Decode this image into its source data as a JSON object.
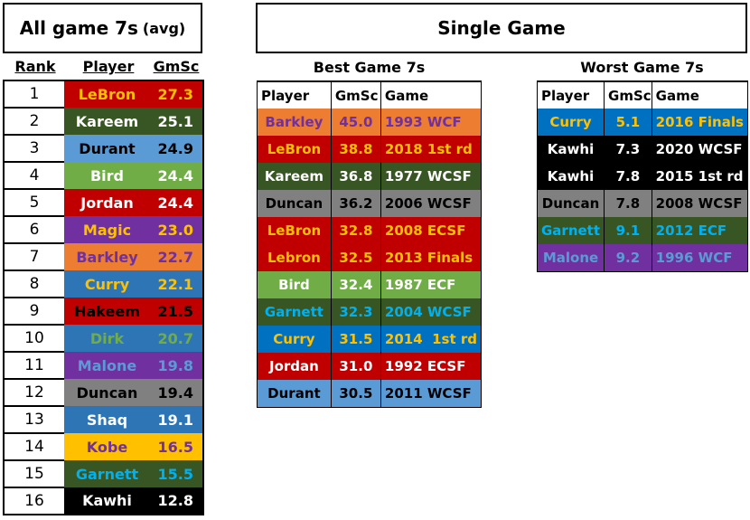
{
  "colors": {
    "red": "#C00000",
    "dark_green": "#375623",
    "light_blue": "#5B9BD5",
    "green": "#70AD47",
    "purple": "#7030A0",
    "orange": "#ED7D31",
    "blue": "#2E75B6",
    "bright_blue": "#0070C0",
    "gray": "#808080",
    "gold": "#FFC000",
    "black": "#000000",
    "white": "#FFFFFF",
    "cyan": "#00B0F0"
  },
  "left": {
    "title": "All game 7s",
    "title_suffix": "(avg)",
    "headers": {
      "rank": "Rank",
      "player": "Player",
      "gmsc": "GmSc"
    },
    "rows": [
      {
        "rank": "1",
        "player": "LeBron",
        "gmsc": "27.3",
        "bg": "#C00000",
        "fg": "#FFC000"
      },
      {
        "rank": "2",
        "player": "Kareem",
        "gmsc": "25.1",
        "bg": "#375623",
        "fg": "#FFFFFF"
      },
      {
        "rank": "3",
        "player": "Durant",
        "gmsc": "24.9",
        "bg": "#5B9BD5",
        "fg": "#000000"
      },
      {
        "rank": "4",
        "player": "Bird",
        "gmsc": "24.4",
        "bg": "#70AD47",
        "fg": "#FFFFFF"
      },
      {
        "rank": "5",
        "player": "Jordan",
        "gmsc": "24.4",
        "bg": "#C00000",
        "fg": "#FFFFFF"
      },
      {
        "rank": "6",
        "player": "Magic",
        "gmsc": "23.0",
        "bg": "#7030A0",
        "fg": "#FFC000"
      },
      {
        "rank": "7",
        "player": "Barkley",
        "gmsc": "22.7",
        "bg": "#ED7D31",
        "fg": "#7030A0"
      },
      {
        "rank": "8",
        "player": "Curry",
        "gmsc": "22.1",
        "bg": "#2E75B6",
        "fg": "#FFC000"
      },
      {
        "rank": "9",
        "player": "Hakeem",
        "gmsc": "21.5",
        "bg": "#C00000",
        "fg": "#000000"
      },
      {
        "rank": "10",
        "player": "Dirk",
        "gmsc": "20.7",
        "bg": "#2E75B6",
        "fg": "#70AD47"
      },
      {
        "rank": "11",
        "player": "Malone",
        "gmsc": "19.8",
        "bg": "#7030A0",
        "fg": "#5B9BD5"
      },
      {
        "rank": "12",
        "player": "Duncan",
        "gmsc": "19.4",
        "bg": "#808080",
        "fg": "#000000"
      },
      {
        "rank": "13",
        "player": "Shaq",
        "gmsc": "19.1",
        "bg": "#2E75B6",
        "fg": "#FFFFFF"
      },
      {
        "rank": "14",
        "player": "Kobe",
        "gmsc": "16.5",
        "bg": "#FFC000",
        "fg": "#7030A0"
      },
      {
        "rank": "15",
        "player": "Garnett",
        "gmsc": "15.5",
        "bg": "#375623",
        "fg": "#00B0F0"
      },
      {
        "rank": "16",
        "player": "Kawhi",
        "gmsc": "12.8",
        "bg": "#000000",
        "fg": "#FFFFFF"
      }
    ]
  },
  "single": {
    "title": "Single Game",
    "best": {
      "title": "Best Game 7s",
      "headers": {
        "player": "Player",
        "gmsc": "GmSc",
        "game": "Game"
      },
      "rows": [
        {
          "player": "Barkley",
          "gmsc": "45.0",
          "game": "1993 WCF",
          "bg": "#ED7D31",
          "fg": "#7030A0"
        },
        {
          "player": "LeBron",
          "gmsc": "38.8",
          "game": "2018 1st rd",
          "bg": "#C00000",
          "fg": "#FFC000"
        },
        {
          "player": "Kareem",
          "gmsc": "36.8",
          "game": "1977 WCSF",
          "bg": "#375623",
          "fg": "#FFFFFF"
        },
        {
          "player": "Duncan",
          "gmsc": "36.2",
          "game": "2006 WCSF",
          "bg": "#808080",
          "fg": "#000000"
        },
        {
          "player": "LeBron",
          "gmsc": "32.8",
          "game": "2008 ECSF",
          "bg": "#C00000",
          "fg": "#FFC000"
        },
        {
          "player": "Lebron",
          "gmsc": "32.5",
          "game": "2013 Finals",
          "bg": "#C00000",
          "fg": "#FFC000"
        },
        {
          "player": "Bird",
          "gmsc": "32.4",
          "game": "1987 ECF",
          "bg": "#70AD47",
          "fg": "#FFFFFF"
        },
        {
          "player": "Garnett",
          "gmsc": "32.3",
          "game": "2004 WCSF",
          "bg": "#375623",
          "fg": "#00B0F0"
        },
        {
          "player": "Curry",
          "gmsc": "31.5",
          "game": "2014  1st rd",
          "bg": "#0070C0",
          "fg": "#FFC000"
        },
        {
          "player": "Jordan",
          "gmsc": "31.0",
          "game": "1992 ECSF",
          "bg": "#C00000",
          "fg": "#FFFFFF"
        },
        {
          "player": "Durant",
          "gmsc": "30.5",
          "game": "2011 WCSF",
          "bg": "#5B9BD5",
          "fg": "#000000"
        }
      ]
    },
    "worst": {
      "title": "Worst Game 7s",
      "headers": {
        "player": "Player",
        "gmsc": "GmSc",
        "game": "Game"
      },
      "rows": [
        {
          "player": "Curry",
          "gmsc": "5.1",
          "game": "2016 Finals",
          "bg": "#0070C0",
          "fg": "#FFC000"
        },
        {
          "player": "Kawhi",
          "gmsc": "7.3",
          "game": "2020 WCSF",
          "bg": "#000000",
          "fg": "#FFFFFF"
        },
        {
          "player": "Kawhi",
          "gmsc": "7.8",
          "game": "2015 1st rd",
          "bg": "#000000",
          "fg": "#FFFFFF"
        },
        {
          "player": "Duncan",
          "gmsc": "7.8",
          "game": "2008 WCSF",
          "bg": "#808080",
          "fg": "#000000"
        },
        {
          "player": "Garnett",
          "gmsc": "9.1",
          "game": "2012 ECF",
          "bg": "#375623",
          "fg": "#00B0F0"
        },
        {
          "player": "Malone",
          "gmsc": "9.2",
          "game": "1996 WCF",
          "bg": "#7030A0",
          "fg": "#5B9BD5"
        }
      ]
    }
  }
}
